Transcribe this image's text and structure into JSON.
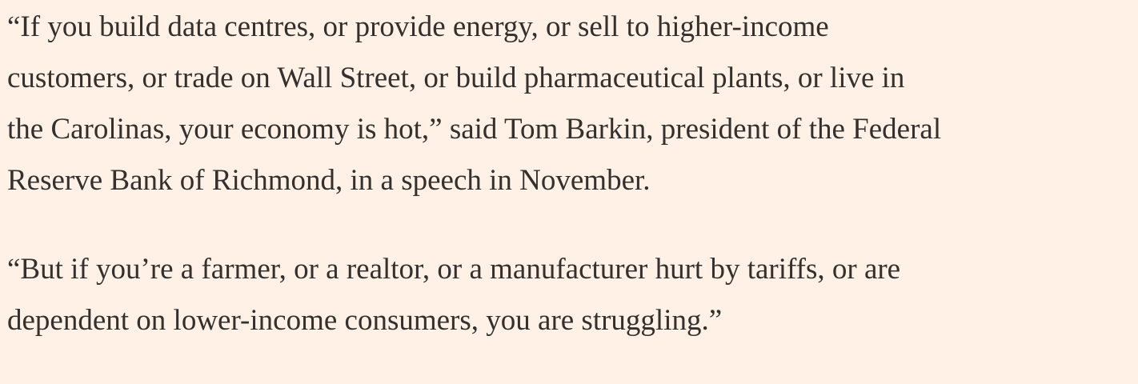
{
  "paragraphs": [
    {
      "lines": [
        "“If you build data centres, or provide energy, or sell to higher-income",
        "customers, or trade on Wall Street, or build pharmaceutical plants, or live in",
        "the Carolinas, your economy is hot,” said Tom Barkin, president of the Federal",
        "Reserve Bank of Richmond, in a speech in November."
      ]
    },
    {
      "lines": [
        "“But if you’re a farmer, or a realtor, or a manufacturer hurt by tariffs, or are",
        "dependent on lower-income consumers, you are struggling.”"
      ]
    }
  ]
}
